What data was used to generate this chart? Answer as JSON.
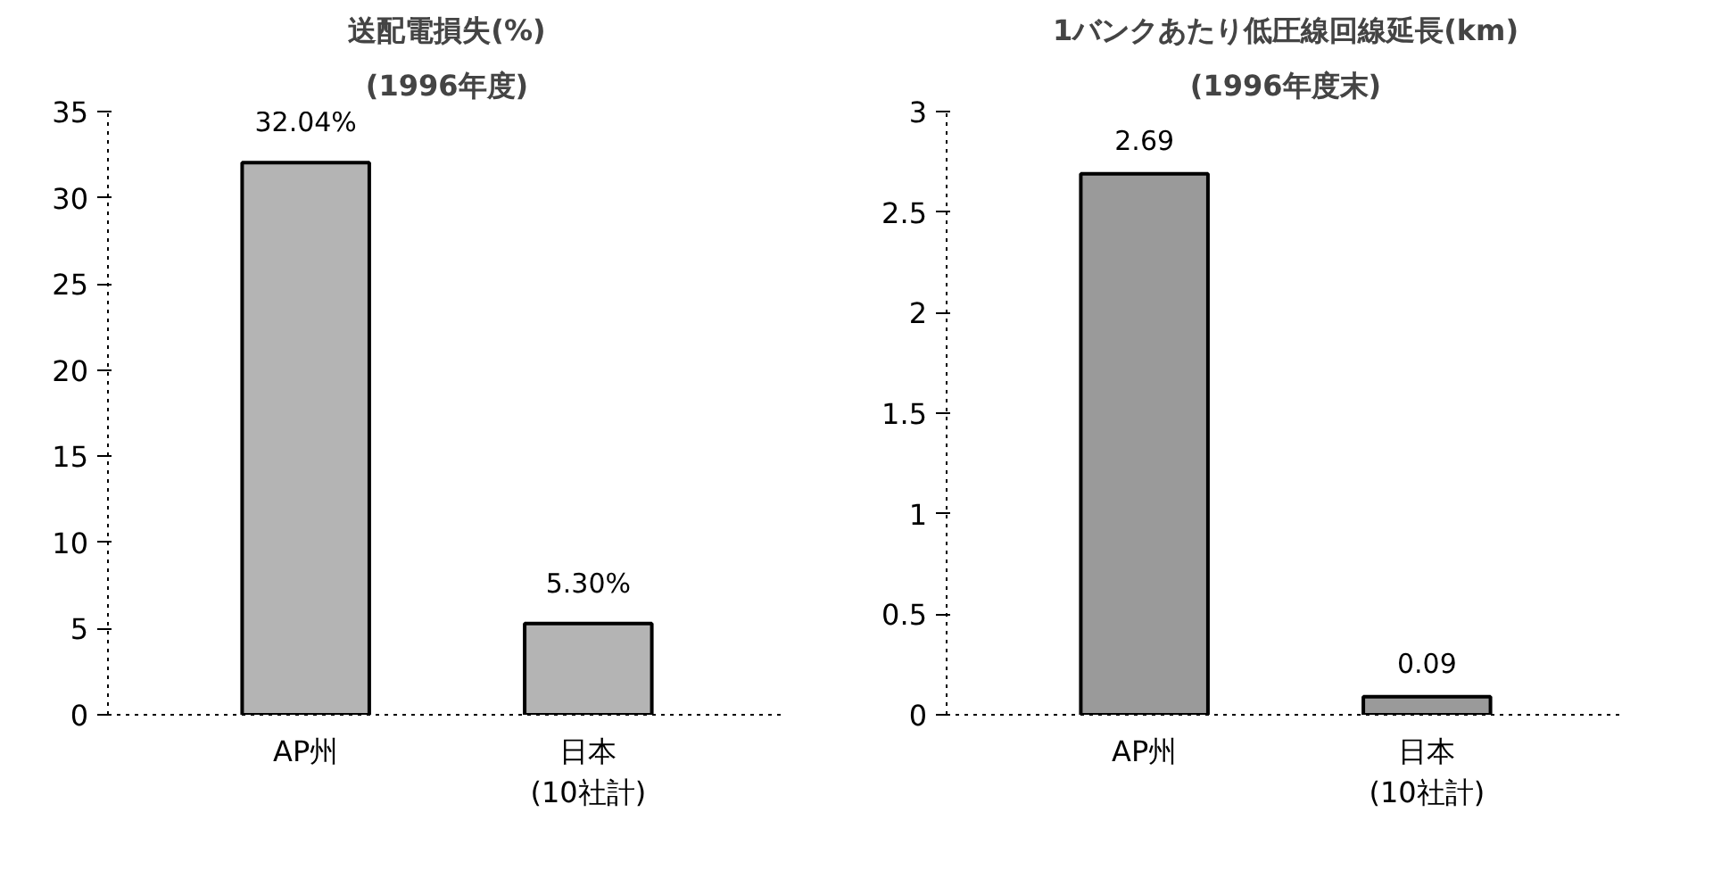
{
  "chart_data": [
    {
      "type": "bar",
      "title": "送配電損失(%)",
      "subtitle": "(1996年度)",
      "categories": [
        "AP州",
        "日本(10社計)"
      ],
      "values": [
        32.04,
        5.3
      ],
      "value_labels": [
        "32.04%",
        "5.30%"
      ],
      "color": "#b4b4b4",
      "ylim": [
        0,
        35
      ],
      "yticks": [
        0,
        5,
        10,
        15,
        20,
        25,
        30,
        35
      ],
      "grid": false
    },
    {
      "type": "bar",
      "title": "1バンクあたり低圧線回線延長(km)",
      "subtitle": "(1996年度末)",
      "categories": [
        "AP州",
        "日本(10社計)"
      ],
      "values": [
        2.69,
        0.09
      ],
      "value_labels": [
        "2.69",
        "0.09"
      ],
      "color": "#9a9a9a",
      "ylim": [
        0,
        3
      ],
      "yticks": [
        0,
        0.5,
        1,
        1.5,
        2,
        2.5,
        3
      ],
      "grid": false
    }
  ]
}
